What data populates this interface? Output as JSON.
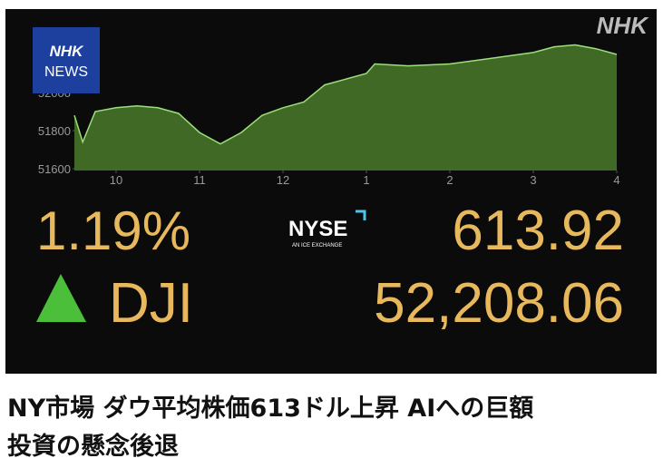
{
  "chart_data": {
    "type": "area",
    "color": "#4a7a2c",
    "x": [
      9.5,
      9.6,
      9.75,
      10,
      10.25,
      10.5,
      10.75,
      11,
      11.25,
      11.5,
      11.75,
      12,
      12.25,
      12.5,
      12.75,
      13,
      13.1,
      13.5,
      14,
      14.5,
      15,
      15.25,
      15.5,
      15.75,
      16
    ],
    "values": [
      51880,
      51740,
      51900,
      51920,
      51930,
      51920,
      51890,
      51790,
      51730,
      51790,
      51880,
      51920,
      51950,
      52040,
      52070,
      52100,
      52150,
      52140,
      52150,
      52180,
      52210,
      52240,
      52250,
      52230,
      52200
    ],
    "xlim": [
      9.5,
      16
    ],
    "xticks": [
      10,
      11,
      12,
      {
        "value": 13,
        "label": "1"
      },
      {
        "value": 14,
        "label": "2"
      },
      {
        "value": 15,
        "label": "3"
      },
      {
        "value": 16,
        "label": "4"
      }
    ],
    "ylim": [
      51600,
      52300
    ],
    "yticks": [
      51600,
      51800,
      52000
    ]
  },
  "brand": "NHK",
  "logo": {
    "line1": "NHK",
    "line2": "NEWS"
  },
  "exchange": {
    "name": "NYSE",
    "tagline": "AN ICE EXCHANGE"
  },
  "quote": {
    "percent": "1.19%",
    "change": "613.92",
    "index": "DJI",
    "price": "52,208.06"
  },
  "headline": {
    "line1": "NY市場 ダウ平均株価613ドル上昇 AIへの巨額",
    "line2": "投資の懸念後退"
  }
}
